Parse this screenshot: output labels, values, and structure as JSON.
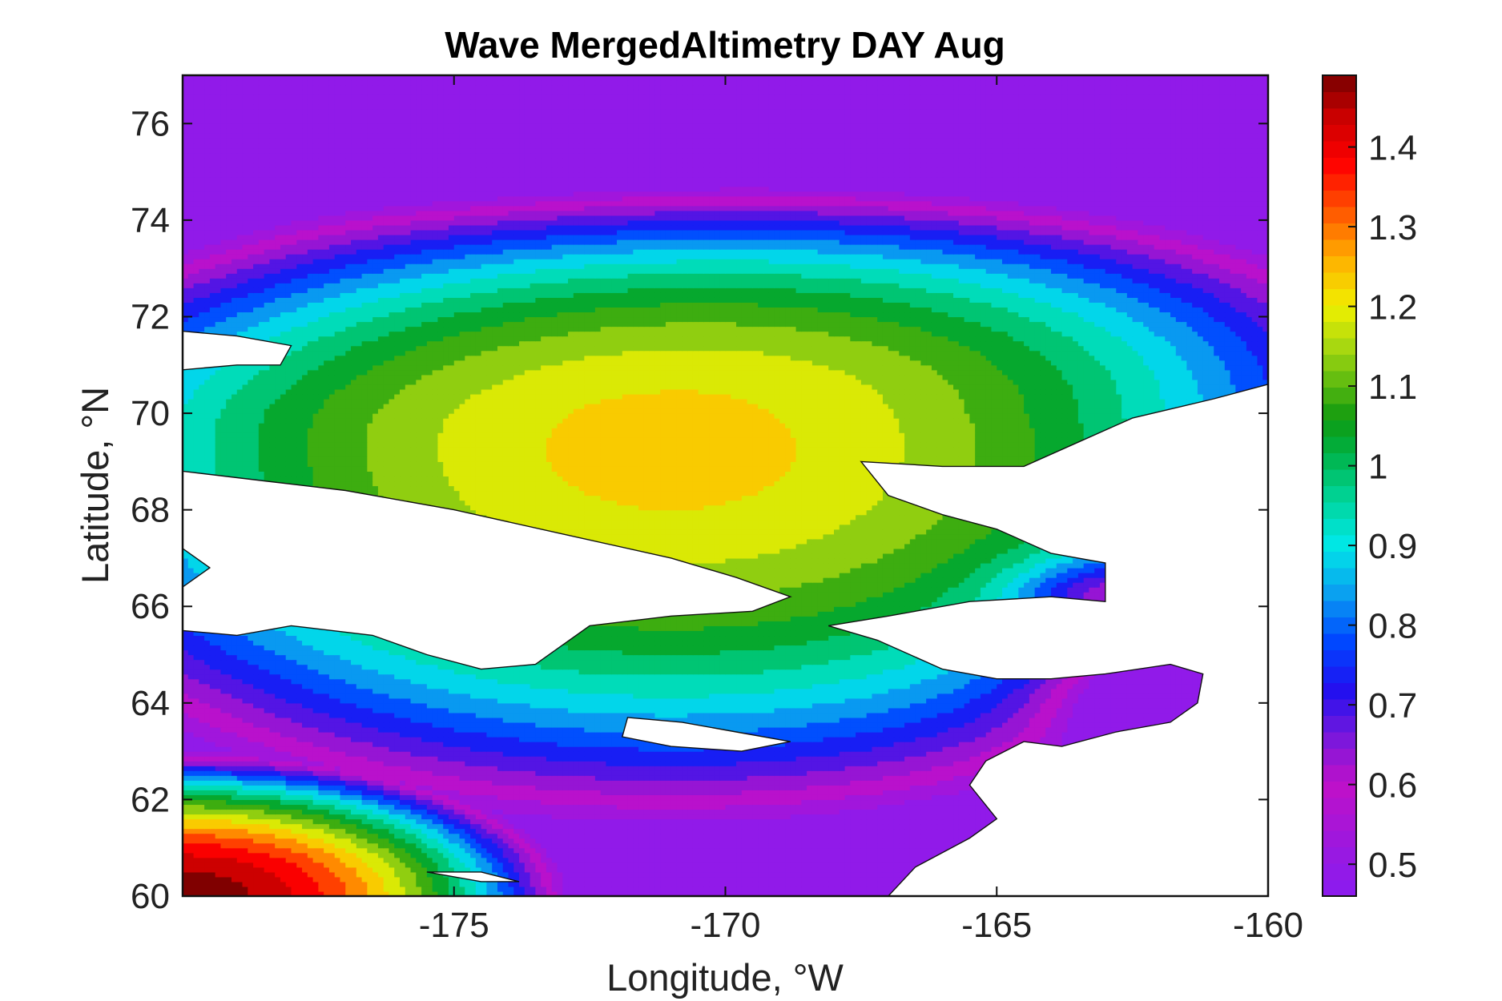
{
  "chart_data": {
    "type": "heatmap",
    "subtype": "filled-contour-map",
    "title": "Wave MergedAltimetry DAY Aug",
    "xlabel": "Longitude, °W",
    "ylabel": "Latitude, °N",
    "xlim": [
      -180,
      -160
    ],
    "ylim": [
      60,
      77
    ],
    "x_ticks": [
      -175,
      -170,
      -165,
      -160
    ],
    "x_tick_labels": [
      "-175",
      "-170",
      "-165",
      "-160"
    ],
    "y_ticks": [
      60,
      62,
      64,
      66,
      68,
      70,
      72,
      74,
      76
    ],
    "y_tick_labels": [
      "60",
      "62",
      "64",
      "66",
      "68",
      "70",
      "72",
      "74",
      "76"
    ],
    "colorbar": {
      "range": [
        0.46,
        1.49
      ],
      "ticks": [
        0.5,
        0.6,
        0.7,
        0.8,
        0.9,
        1.0,
        1.1,
        1.2,
        1.3,
        1.4
      ],
      "tick_labels": [
        "0.5",
        "0.6",
        "0.7",
        "0.8",
        "0.9",
        "1",
        "1.1",
        "1.2",
        "1.3",
        "1.4"
      ],
      "colormap": [
        {
          "value": 0.46,
          "color": "#8a1cf0"
        },
        {
          "value": 0.52,
          "color": "#9a18e0"
        },
        {
          "value": 0.6,
          "color": "#c010c8"
        },
        {
          "value": 0.66,
          "color": "#7818dc"
        },
        {
          "value": 0.72,
          "color": "#2010f0"
        },
        {
          "value": 0.78,
          "color": "#0048ff"
        },
        {
          "value": 0.84,
          "color": "#0aa0f0"
        },
        {
          "value": 0.9,
          "color": "#00e8e8"
        },
        {
          "value": 0.96,
          "color": "#00d498"
        },
        {
          "value": 1.02,
          "color": "#00b040"
        },
        {
          "value": 1.06,
          "color": "#109a10"
        },
        {
          "value": 1.1,
          "color": "#58b810"
        },
        {
          "value": 1.15,
          "color": "#a8d810"
        },
        {
          "value": 1.2,
          "color": "#f0f000"
        },
        {
          "value": 1.26,
          "color": "#ffb000"
        },
        {
          "value": 1.32,
          "color": "#ff5500"
        },
        {
          "value": 1.38,
          "color": "#ff0000"
        },
        {
          "value": 1.44,
          "color": "#c80000"
        },
        {
          "value": 1.49,
          "color": "#780000"
        }
      ]
    },
    "field_features": [
      {
        "feature": "maximum",
        "lon": -171,
        "lat": 69.3,
        "value": 1.23
      },
      {
        "feature": "maximum",
        "lon": -180,
        "lat": 60.0,
        "value": 1.48
      },
      {
        "feature": "minimum",
        "lon": -172,
        "lat": 76.8,
        "value": 0.5
      },
      {
        "feature": "minimum",
        "lon": -161,
        "lat": 64.4,
        "value": 0.55
      }
    ],
    "grid": false,
    "land_color": "#ffffff"
  }
}
